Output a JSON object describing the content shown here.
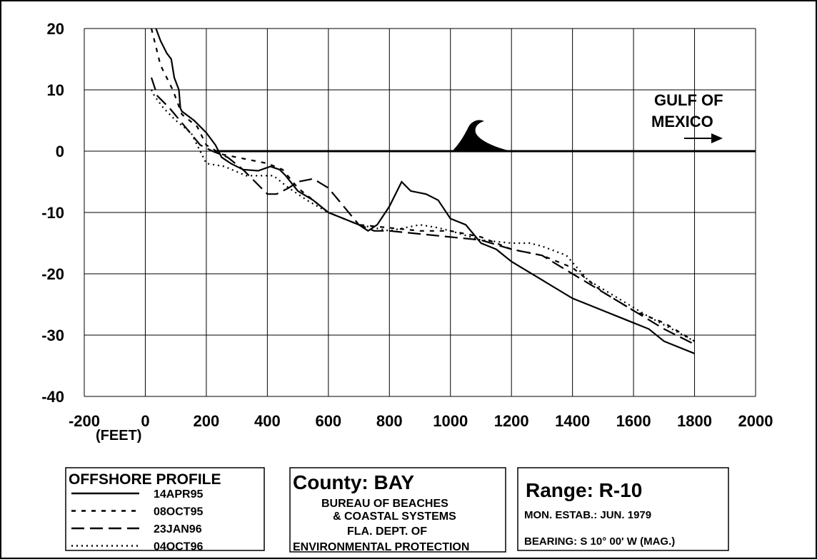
{
  "chart_data": {
    "type": "line",
    "x_label": "(FEET)",
    "annotation": [
      "GULF OF",
      "MEXICO"
    ],
    "xlim": [
      -200,
      2000
    ],
    "xticks": [
      -200,
      0,
      200,
      400,
      600,
      800,
      1000,
      1200,
      1400,
      1600,
      1800,
      2000
    ],
    "ylim": [
      -40,
      20
    ],
    "yticks": [
      -40,
      -30,
      -20,
      -10,
      0,
      10,
      20
    ],
    "grid": true,
    "legend_title": "OFFSHORE PROFILE",
    "series": [
      {
        "name": "14APR95",
        "color": "#000000",
        "dash": "solid",
        "x": [
          35,
          50,
          70,
          85,
          95,
          110,
          115,
          120,
          160,
          180,
          200,
          230,
          250,
          280,
          320,
          370,
          410,
          440,
          460,
          500,
          550,
          600,
          650,
          700,
          730,
          760,
          800,
          840,
          870,
          920,
          960,
          1000,
          1050,
          1100,
          1150,
          1200,
          1300,
          1400,
          1450,
          1500,
          1550,
          1600,
          1650,
          1700,
          1800
        ],
        "values": [
          20,
          18,
          16,
          15,
          12,
          10,
          7,
          6.5,
          5,
          4,
          3,
          1,
          -1,
          -2,
          -3,
          -3.2,
          -2.5,
          -3,
          -4,
          -6.5,
          -8,
          -10,
          -11,
          -12,
          -13,
          -12,
          -9,
          -5,
          -6.5,
          -7,
          -8,
          -11,
          -12,
          -15,
          -16,
          -18,
          -21,
          -24,
          -25,
          -26,
          -27,
          -28,
          -29,
          -31,
          -33
        ]
      },
      {
        "name": "08OCT95",
        "color": "#000000",
        "dash": "short",
        "x": [
          20,
          50,
          90,
          120,
          170,
          200,
          250,
          300,
          400,
          450,
          500,
          550,
          600,
          700,
          800,
          900,
          1000,
          1100,
          1200,
          1300,
          1400,
          1500,
          1600,
          1700,
          1800
        ],
        "values": [
          20,
          14,
          10,
          6,
          4,
          1,
          -0.5,
          -1,
          -2,
          -3,
          -6,
          -8,
          -10,
          -12,
          -12.5,
          -13,
          -13,
          -14,
          -16,
          -17,
          -19,
          -23,
          -26,
          -28,
          -31
        ]
      },
      {
        "name": "23JAN96",
        "color": "#000000",
        "dash": "long",
        "x": [
          20,
          40,
          80,
          130,
          180,
          220,
          270,
          320,
          360,
          400,
          430,
          470,
          500,
          550,
          600,
          650,
          700,
          750,
          800,
          900,
          1000,
          1100,
          1200,
          1300,
          1400,
          1500,
          1600,
          1700,
          1800
        ],
        "values": [
          12,
          9,
          7,
          4,
          1,
          0,
          -1,
          -3,
          -5,
          -7,
          -7,
          -6,
          -5,
          -4.5,
          -6,
          -9,
          -12,
          -13,
          -13,
          -13.5,
          -14,
          -14.5,
          -16,
          -17,
          -20,
          -23,
          -26,
          -29,
          -31.5
        ]
      },
      {
        "name": "04OCT96",
        "color": "#000000",
        "dash": "dot",
        "x": [
          20,
          30,
          60,
          100,
          150,
          200,
          260,
          330,
          380,
          420,
          470,
          530,
          600,
          700,
          800,
          900,
          960,
          1000,
          1100,
          1200,
          1260,
          1300,
          1380,
          1450,
          1550,
          1650,
          1800
        ],
        "values": [
          10,
          9,
          7,
          5,
          3,
          -2,
          -2.5,
          -4,
          -4,
          -4,
          -6,
          -8,
          -10,
          -12,
          -13,
          -12,
          -12.5,
          -13,
          -14.5,
          -15,
          -15,
          -15.5,
          -17,
          -21,
          -24,
          -27,
          -31
        ]
      }
    ]
  },
  "county_box": {
    "title": "County:  BAY",
    "lines": [
      "BUREAU OF BEACHES",
      "& COASTAL SYSTEMS",
      "FLA. DEPT. OF",
      "ENVIRONMENTAL PROTECTION"
    ]
  },
  "range_box": {
    "title": "Range:  R-10",
    "lines": [
      "MON. ESTAB.: JUN. 1979",
      "BEARING:  S 10° 00'  W  (MAG.)"
    ]
  }
}
